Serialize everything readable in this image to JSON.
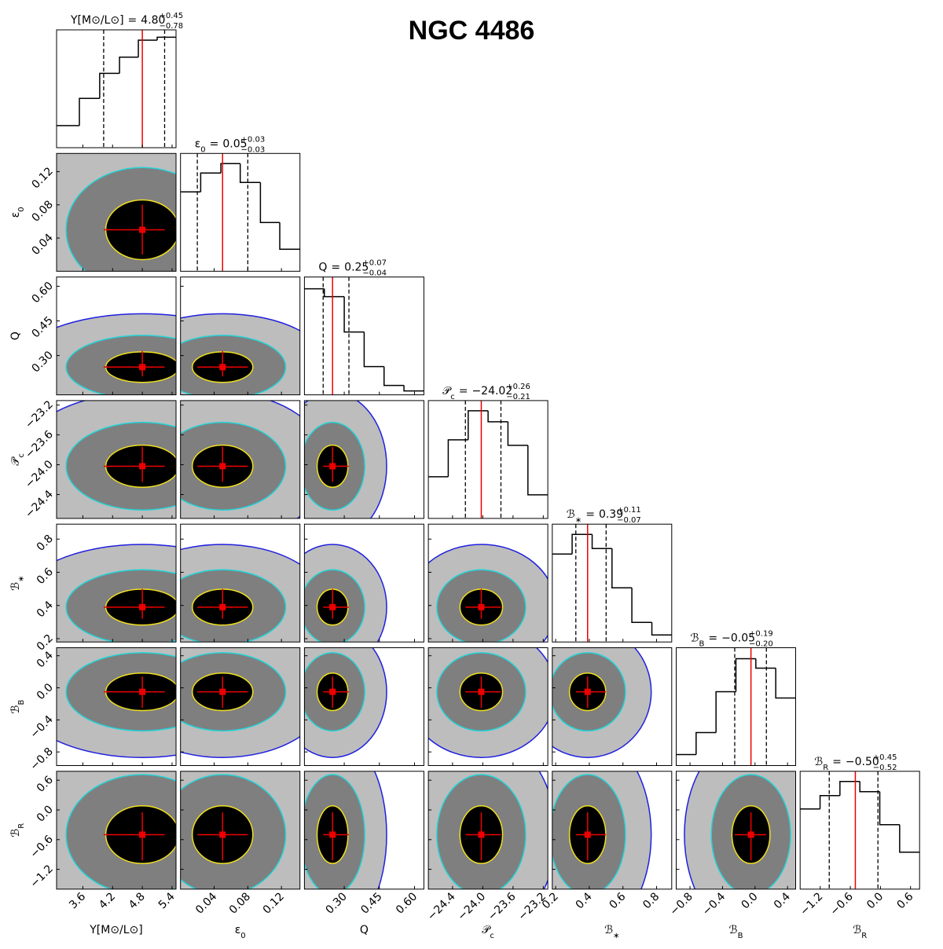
{
  "chart_data": {
    "type": "corner",
    "title": "NGC 4486",
    "equals": "=",
    "params": [
      {
        "symbol": "Υ[M⊙/L⊙]",
        "median": {
          "value": 4.8,
          "label": "4.80"
        },
        "err_plus": {
          "value": 0.45,
          "label": "+0.45"
        },
        "err_minus": {
          "value": -0.78,
          "label": "−0.78"
        },
        "lim": [
          3.07,
          5.48
        ],
        "ticks": [
          3.6,
          4.2,
          4.8,
          5.4
        ],
        "bins": [
          3.07,
          3.53,
          3.94,
          4.34,
          4.72,
          5.1,
          5.48
        ],
        "counts": [
          30,
          67,
          101,
          123,
          146,
          150
        ],
        "hist_ylim": [
          0,
          160
        ]
      },
      {
        "symbol": "ε",
        "sub": "0",
        "median": {
          "value": 0.05,
          "label": "0.05"
        },
        "err_plus": {
          "value": 0.03,
          "label": "+0.03"
        },
        "err_minus": {
          "value": -0.03,
          "label": "−0.03"
        },
        "lim": [
          0.0,
          0.142
        ],
        "ticks": [
          0.04,
          0.08,
          0.12
        ],
        "bins": [
          0.0,
          0.024,
          0.048,
          0.071,
          0.095,
          0.118,
          0.142
        ],
        "counts": [
          101,
          125,
          137,
          113,
          62,
          28
        ],
        "hist_ylim": [
          0,
          150
        ]
      },
      {
        "symbol": "Q",
        "median": {
          "value": 0.25,
          "label": "0.25"
        },
        "err_plus": {
          "value": 0.07,
          "label": "+0.07"
        },
        "err_minus": {
          "value": -0.04,
          "label": "−0.04"
        },
        "lim": [
          0.13,
          0.64
        ],
        "ticks": [
          {
            "value": 0.3,
            "label": "0.30"
          },
          0.45,
          {
            "value": 0.6,
            "label": "0.60"
          }
        ],
        "bins": [
          0.13,
          0.215,
          0.3,
          0.385,
          0.47,
          0.555,
          0.64
        ],
        "counts": [
          135,
          125,
          80,
          36,
          12,
          5
        ],
        "hist_ylim": [
          0,
          150
        ]
      },
      {
        "symbol": "𝒫",
        "sub": "c",
        "median": {
          "value": -24.02,
          "label": "−24.02"
        },
        "err_plus": {
          "value": 0.26,
          "label": "+0.26"
        },
        "err_minus": {
          "value": -0.21,
          "label": "−0.21"
        },
        "lim": [
          -24.72,
          -23.14
        ],
        "ticks": [
          {
            "value": -24.4,
            "label": "−24.4"
          },
          {
            "value": -24.0,
            "label": "−24.0"
          },
          {
            "value": -23.6,
            "label": "−23.6"
          },
          {
            "value": -23.2,
            "label": "−23.2"
          }
        ],
        "bins": [
          -24.72,
          -24.457,
          -24.193,
          -23.93,
          -23.667,
          -23.403,
          -23.14
        ],
        "counts": [
          53,
          100,
          137,
          123,
          93,
          30
        ],
        "hist_ylim": [
          0,
          150
        ]
      },
      {
        "symbol": "ℬ",
        "sub": "∗",
        "median": {
          "value": 0.39,
          "label": "0.39"
        },
        "err_plus": {
          "value": 0.11,
          "label": "+0.11"
        },
        "err_minus": {
          "value": -0.07,
          "label": "−0.07"
        },
        "lim": [
          0.18,
          0.89
        ],
        "ticks": [
          0.2,
          0.4,
          0.6,
          0.8
        ],
        "bins": [
          0.18,
          0.298,
          0.417,
          0.535,
          0.653,
          0.772,
          0.89
        ],
        "counts": [
          112,
          137,
          119,
          69,
          25,
          9
        ],
        "hist_ylim": [
          0,
          150
        ]
      },
      {
        "symbol": "ℬ",
        "sub": "B",
        "median": {
          "value": -0.05,
          "label": "−0.05"
        },
        "err_plus": {
          "value": 0.19,
          "label": "+0.19"
        },
        "err_minus": {
          "value": -0.2,
          "label": "−0.20"
        },
        "lim": [
          -0.97,
          0.5
        ],
        "ticks": [
          {
            "value": -0.8,
            "label": "−0.8"
          },
          {
            "value": -0.4,
            "label": "−0.4"
          },
          {
            "value": 0.0,
            "label": "0.0"
          },
          0.4
        ],
        "bins": [
          -0.97,
          -0.725,
          -0.48,
          -0.235,
          0.01,
          0.255,
          0.5
        ],
        "counts": [
          14,
          42,
          94,
          136,
          124,
          86
        ],
        "hist_ylim": [
          0,
          150
        ]
      },
      {
        "symbol": "ℬ",
        "sub": "R",
        "median": {
          "value": -0.5,
          "label": "−0.50"
        },
        "err_plus": {
          "value": 0.45,
          "label": "+0.45"
        },
        "err_minus": {
          "value": -0.52,
          "label": "−0.52"
        },
        "lim": [
          -1.6,
          0.78
        ],
        "ticks": [
          {
            "value": -1.2,
            "label": "−1.2"
          },
          {
            "value": -0.6,
            "label": "−0.6"
          },
          {
            "value": 0.0,
            "label": "0.0"
          },
          0.6
        ],
        "bins": [
          -1.6,
          -1.203,
          -0.807,
          -0.41,
          -0.013,
          0.383,
          0.78
        ],
        "counts": [
          102,
          119,
          137,
          124,
          82,
          47
        ],
        "hist_ylim": [
          0,
          150
        ]
      }
    ]
  }
}
